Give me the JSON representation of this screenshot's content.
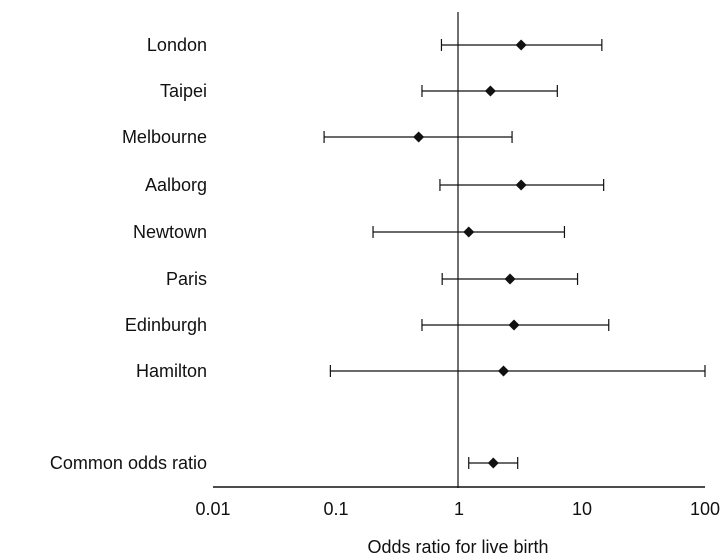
{
  "chart_data": {
    "type": "scatter",
    "subtype": "forest-plot",
    "title": "",
    "xlabel": "Odds ratio for live birth",
    "ylabel": "",
    "xscale": "log",
    "xlim": [
      0.01,
      100
    ],
    "xticks": [
      0.01,
      0.1,
      1,
      10,
      100
    ],
    "xtick_labels": [
      "0.01",
      "0.1",
      "1",
      "10",
      "100"
    ],
    "reference_line": 1,
    "grid": false,
    "legend": "none",
    "colors": {
      "ink": "#111111",
      "background": "#ffffff"
    },
    "rows": [
      {
        "label": "London",
        "or": 3.2,
        "lower": 0.72,
        "upper": 14.5
      },
      {
        "label": "Taipei",
        "or": 1.8,
        "lower": 0.5,
        "upper": 6.3
      },
      {
        "label": "Melbourne",
        "or": 0.47,
        "lower": 0.08,
        "upper": 2.7
      },
      {
        "label": "Aalborg",
        "or": 3.2,
        "lower": 0.7,
        "upper": 15
      },
      {
        "label": "Newtown",
        "or": 1.2,
        "lower": 0.2,
        "upper": 7.2
      },
      {
        "label": "Paris",
        "or": 2.6,
        "lower": 0.73,
        "upper": 9.2
      },
      {
        "label": "Edinburgh",
        "or": 2.8,
        "lower": 0.5,
        "upper": 16.5
      },
      {
        "label": "Hamilton",
        "or": 2.3,
        "lower": 0.09,
        "upper": 100
      },
      {
        "label": "Common odds ratio",
        "or": 1.9,
        "lower": 1.2,
        "upper": 3.0
      }
    ]
  }
}
